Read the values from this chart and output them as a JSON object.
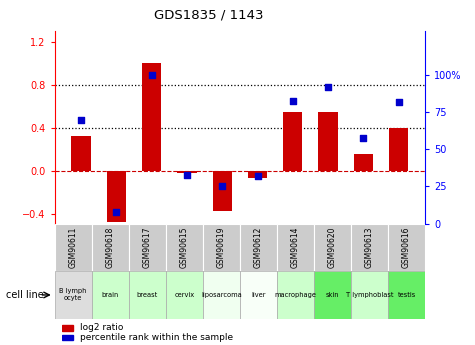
{
  "title": "GDS1835 / 1143",
  "gsm_labels": [
    "GSM90611",
    "GSM90618",
    "GSM90617",
    "GSM90615",
    "GSM90619",
    "GSM90612",
    "GSM90614",
    "GSM90620",
    "GSM90613",
    "GSM90616"
  ],
  "cell_lines": [
    "B lymph\nocyte",
    "brain",
    "breast",
    "cervix",
    "liposarcoma",
    "liver",
    "macrophage",
    "skin",
    "T lymphoblast",
    "testis"
  ],
  "cell_line_colors": [
    "#dddddd",
    "#ccffcc",
    "#ccffcc",
    "#ccffcc",
    "#f0fff0",
    "#f8fff8",
    "#ccffcc",
    "#66ee66",
    "#ccffcc",
    "#66ee66"
  ],
  "log2_ratio": [
    0.32,
    -0.48,
    1.0,
    -0.02,
    -0.38,
    -0.07,
    0.55,
    0.55,
    0.15,
    0.4
  ],
  "percentile_rank": [
    70,
    8,
    100,
    33,
    25,
    32,
    83,
    92,
    58,
    82
  ],
  "bar_color": "#cc0000",
  "dot_color": "#0000cc",
  "ylim_left": [
    -0.5,
    1.3
  ],
  "ylim_right": [
    -0.5,
    130
  ],
  "yticks_left": [
    -0.4,
    0.0,
    0.4,
    0.8,
    1.2
  ],
  "yticks_right": [
    0,
    25,
    50,
    75,
    100
  ],
  "ytick_labels_right": [
    "0",
    "25",
    "50",
    "75",
    "100%"
  ],
  "hlines": [
    0.4,
    0.8
  ],
  "bar_width": 0.55,
  "bg_color": "#ffffff"
}
